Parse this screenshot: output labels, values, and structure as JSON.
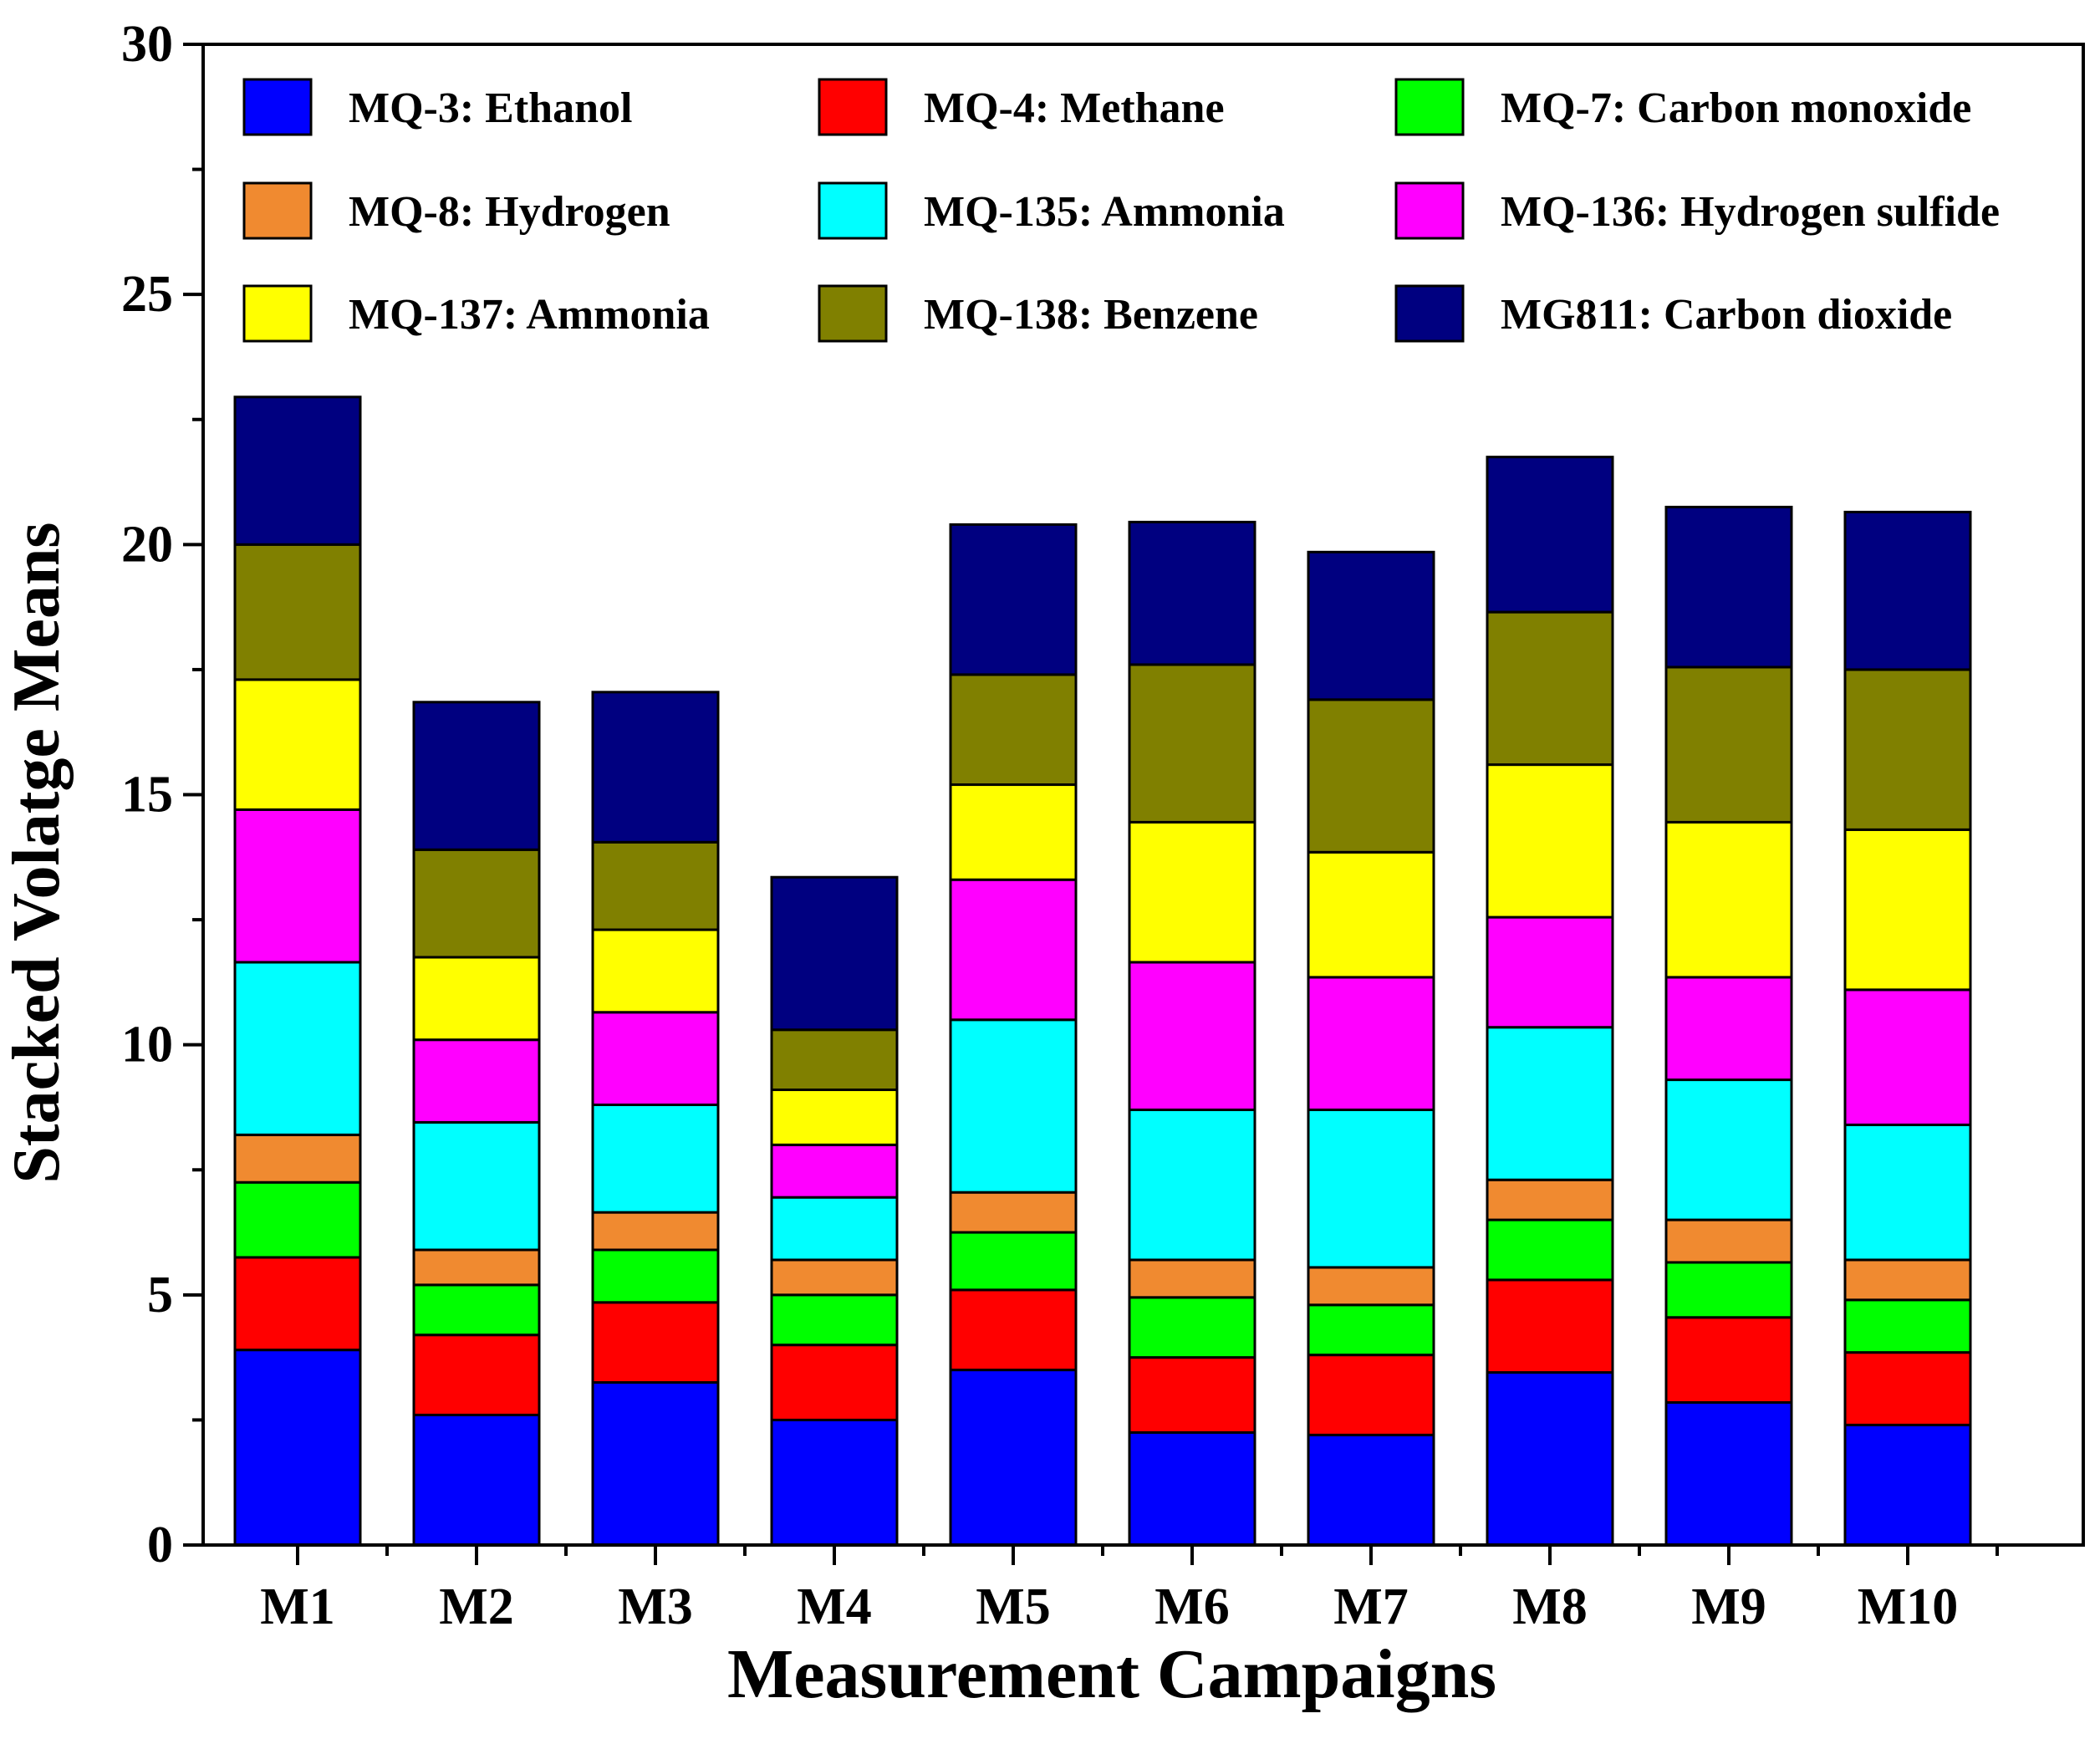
{
  "chart_data": {
    "type": "bar",
    "stacked": true,
    "xlabel": "Measurement Campaigns",
    "ylabel": "Stacked Volatge Means",
    "ylim": [
      0,
      30
    ],
    "yticks": [
      0,
      5,
      10,
      15,
      20,
      25,
      30
    ],
    "grid": false,
    "legend_position": "top",
    "categories": [
      "M1",
      "M2",
      "M3",
      "M4",
      "M5",
      "M6",
      "M7",
      "M8",
      "M9",
      "M10"
    ],
    "series": [
      {
        "name": "MQ-3: Ethanol",
        "color": "#0000FF",
        "values": [
          3.9,
          2.6,
          3.25,
          2.5,
          3.5,
          2.25,
          2.2,
          3.45,
          2.85,
          2.4
        ]
      },
      {
        "name": "MQ-4: Methane",
        "color": "#FF0000",
        "values": [
          1.85,
          1.6,
          1.6,
          1.5,
          1.6,
          1.5,
          1.6,
          1.85,
          1.7,
          1.45
        ]
      },
      {
        "name": "MQ-7: Carbon monoxide",
        "color": "#00FF00",
        "values": [
          1.5,
          1.0,
          1.05,
          1.0,
          1.15,
          1.2,
          1.0,
          1.2,
          1.1,
          1.05
        ]
      },
      {
        "name": "MQ-8: Hydrogen",
        "color": "#F08A30",
        "values": [
          0.95,
          0.7,
          0.75,
          0.7,
          0.8,
          0.75,
          0.75,
          0.8,
          0.85,
          0.8
        ]
      },
      {
        "name": "MQ-135: Ammonia",
        "color": "#00FFFF",
        "values": [
          3.45,
          2.55,
          2.15,
          1.25,
          3.45,
          3.0,
          3.15,
          3.05,
          2.8,
          2.7
        ]
      },
      {
        "name": "MQ-136: Hydrogen sulfide",
        "color": "#FF00FF",
        "values": [
          3.05,
          1.65,
          1.85,
          1.05,
          2.8,
          2.95,
          2.65,
          2.2,
          2.05,
          2.7
        ]
      },
      {
        "name": "MQ-137: Ammonia",
        "color": "#FFFF00",
        "values": [
          2.6,
          1.65,
          1.65,
          1.1,
          1.9,
          2.8,
          2.5,
          3.05,
          3.1,
          3.2
        ]
      },
      {
        "name": "MQ-138: Benzene",
        "color": "#808000",
        "values": [
          2.7,
          2.15,
          1.75,
          1.2,
          2.2,
          3.15,
          3.05,
          3.05,
          3.1,
          3.2
        ]
      },
      {
        "name": "MG811: Carbon dioxide",
        "color": "#000080",
        "values": [
          2.95,
          2.95,
          3.0,
          3.05,
          3.0,
          2.85,
          2.95,
          3.1,
          3.2,
          3.15
        ]
      }
    ]
  }
}
